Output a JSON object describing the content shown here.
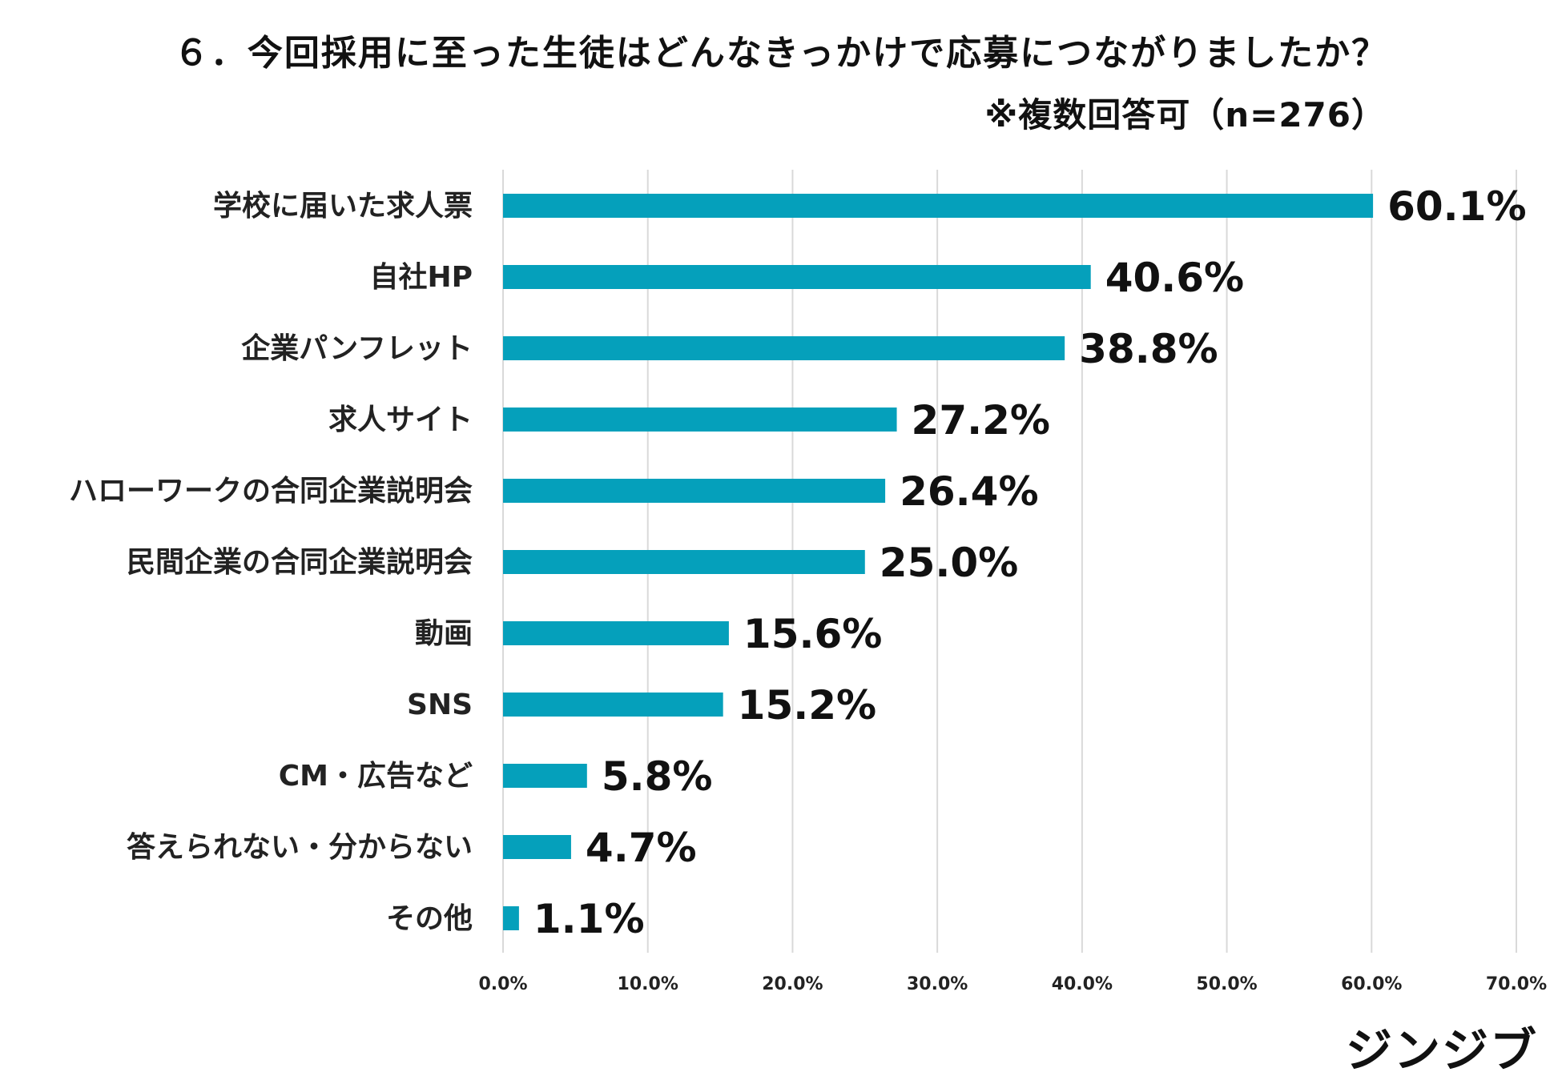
{
  "chart_data": {
    "type": "bar",
    "orientation": "horizontal",
    "title": "６．今回採用に至った生徒はどんなきっかけで応募につながりましたか？",
    "subtitle": "※複数回答可（n=276）",
    "categories": [
      "学校に届いた求人票",
      "自社HP",
      "企業パンフレット",
      "求人サイト",
      "ハローワークの合同企業説明会",
      "民間企業の合同企業説明会",
      "動画",
      "SNS",
      "CM・広告など",
      "答えられない・分からない",
      "その他"
    ],
    "values": [
      60.1,
      40.6,
      38.8,
      27.2,
      26.4,
      25.0,
      15.6,
      15.2,
      5.8,
      4.7,
      1.1
    ],
    "value_labels": [
      "60.1%",
      "40.6%",
      "38.8%",
      "27.2%",
      "26.4%",
      "25.0%",
      "15.6%",
      "15.2%",
      "5.8%",
      "4.7%",
      "1.1%"
    ],
    "xlim": [
      0,
      70
    ],
    "xticks": [
      "0.0%",
      "10.0%",
      "20.0%",
      "30.0%",
      "40.0%",
      "50.0%",
      "60.0%",
      "70.0%"
    ],
    "grid": true,
    "bar_color": "#05a0bb",
    "grid_color": "#d9d9d9"
  },
  "logo_text": "ジンジブ"
}
